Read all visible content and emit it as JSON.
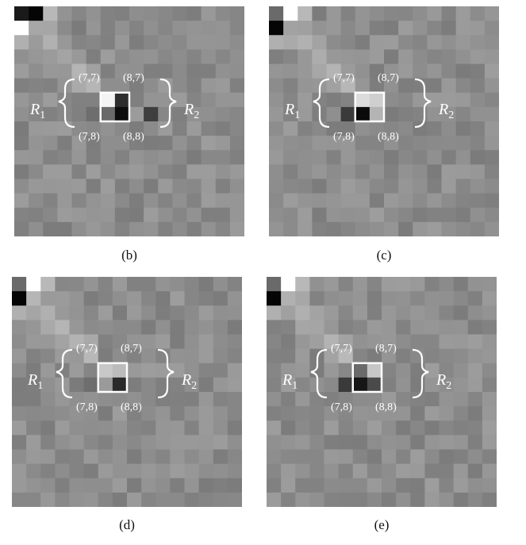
{
  "panels": [
    {
      "id": "b",
      "caption": "(b)",
      "dark_corner": [
        0,
        1
      ],
      "light_corner": [
        1,
        0
      ],
      "center_cells": {
        "7_7": "#f4f4f4",
        "8_7": "#2e2e2e",
        "7_8": "#6a6a6a",
        "8_8": "#0c0c0c"
      }
    },
    {
      "id": "c",
      "caption": "(c)",
      "dark_corner": [
        1,
        0
      ],
      "light_corner": [
        0,
        1
      ],
      "center_cells": {
        "7_7": "#dcdcdc",
        "8_7": "#cfcfcf",
        "7_8": "#0a0a0a",
        "8_8": "#b4b4b4"
      }
    },
    {
      "id": "d",
      "caption": "(d)",
      "dark_corner": [
        1,
        0
      ],
      "light_corner": [
        0,
        1
      ],
      "center_cells": {
        "7_7": "#c8c8c8",
        "8_7": "#bcbcbc",
        "7_8": "#9a9a9a",
        "8_8": "#2a2a2a"
      }
    },
    {
      "id": "e",
      "caption": "(e)",
      "dark_corner": [
        1,
        0
      ],
      "light_corner": [
        0,
        1
      ],
      "center_cells": {
        "7_7": "#6a6a6a",
        "8_7": "#c6c6c6",
        "7_8": "#161616",
        "8_8": "#4a4a4a"
      }
    }
  ],
  "labels": {
    "r1_letter": "R",
    "r1_sub": "1",
    "r2_letter": "R",
    "r2_sub": "2",
    "cell_7_7": "(7,7)",
    "cell_8_7": "(8,7)",
    "cell_7_8": "(7,8)",
    "cell_8_8": "(8,8)"
  },
  "colors": {
    "base_gray": "#8c8c8c",
    "frame": "#ffffff",
    "label_text": "#ffffff"
  }
}
